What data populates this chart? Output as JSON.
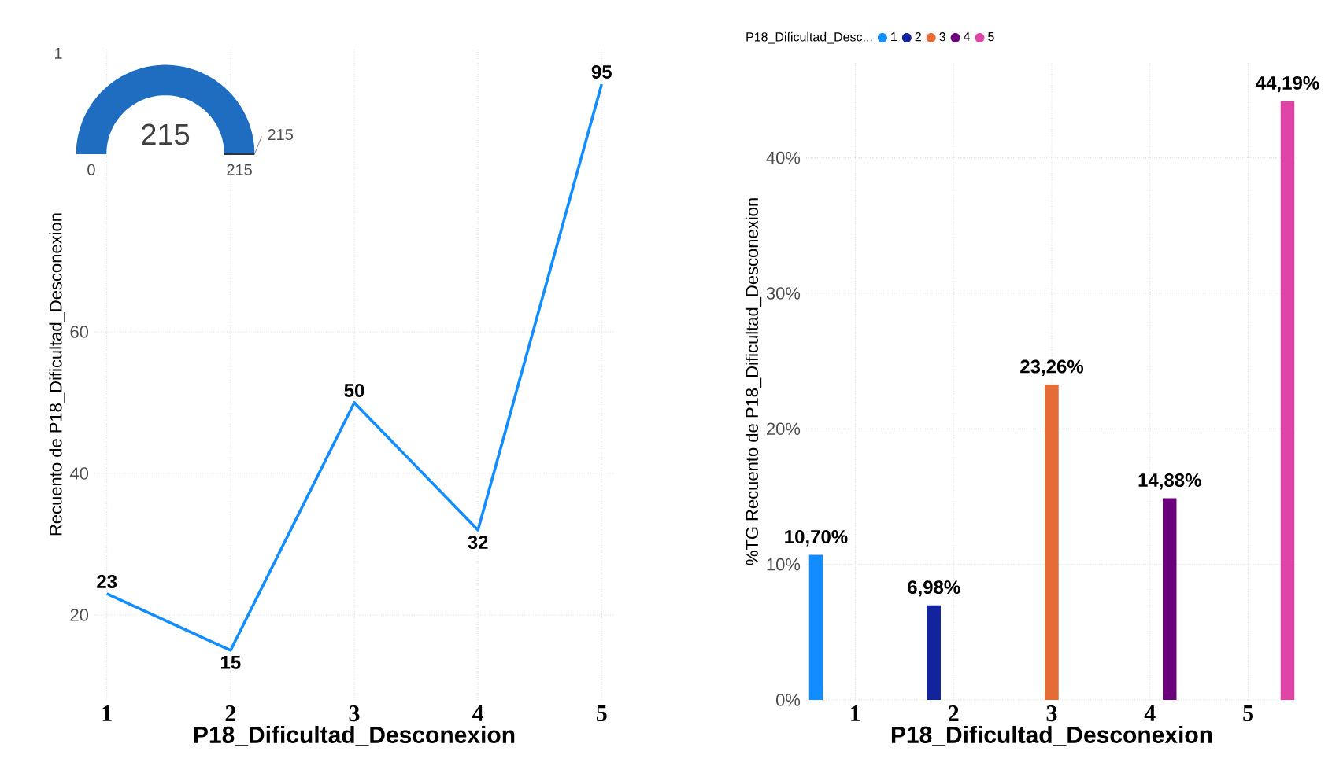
{
  "chart_data": [
    {
      "type": "other",
      "values": [
        215
      ],
      "color": "#1f6dc0",
      "data_labels": true,
      "annotations": [
        "1",
        "0",
        "215",
        "215"
      ]
    },
    {
      "type": "line",
      "categories": [
        "1",
        "2",
        "3",
        "4",
        "5"
      ],
      "values": [
        23,
        15,
        50,
        32,
        95
      ],
      "color": "#118dff",
      "xlabel": "P18_Dificultad_Desconexion",
      "ylabel": "Recuento de P18_Dificultad_Desconexion",
      "ylim": [
        8,
        100
      ],
      "yticks": [
        20,
        40,
        60
      ],
      "grid": true,
      "data_labels": true
    },
    {
      "type": "bar",
      "categories": [
        "1",
        "2",
        "3",
        "4",
        "5"
      ],
      "xlabel": "P18_Dificultad_Desconexion",
      "ylabel": "%TG Recuento de P18_Dificultad_Desconexion",
      "legend_title": "P18_Dificultad_Desc...",
      "legend": "top left",
      "grid": true,
      "ylim": [
        0,
        47
      ],
      "yticks": [
        {
          "value": 0,
          "label": "0%"
        },
        {
          "value": 10,
          "label": "10%"
        },
        {
          "value": 20,
          "label": "20%"
        },
        {
          "value": 30,
          "label": "30%"
        },
        {
          "value": 40,
          "label": "40%"
        }
      ],
      "series": [
        {
          "name": "1",
          "color": "#118dff",
          "values": [
            10.7,
            null,
            null,
            null,
            null
          ],
          "value_labels": [
            "10,70%",
            null,
            null,
            null,
            null
          ]
        },
        {
          "name": "2",
          "color": "#12239e",
          "values": [
            null,
            6.98,
            null,
            null,
            null
          ],
          "value_labels": [
            null,
            "6,98%",
            null,
            null,
            null
          ]
        },
        {
          "name": "3",
          "color": "#e66c37",
          "values": [
            null,
            null,
            23.26,
            null,
            null
          ],
          "value_labels": [
            null,
            null,
            "23,26%",
            null,
            null
          ]
        },
        {
          "name": "4",
          "color": "#6b007b",
          "values": [
            null,
            null,
            null,
            14.88,
            null
          ],
          "value_labels": [
            null,
            null,
            null,
            "14,88%",
            null
          ]
        },
        {
          "name": "5",
          "color": "#e044a7",
          "values": [
            null,
            null,
            null,
            null,
            44.19
          ],
          "value_labels": [
            null,
            null,
            null,
            null,
            "44,19%"
          ]
        }
      ]
    }
  ]
}
